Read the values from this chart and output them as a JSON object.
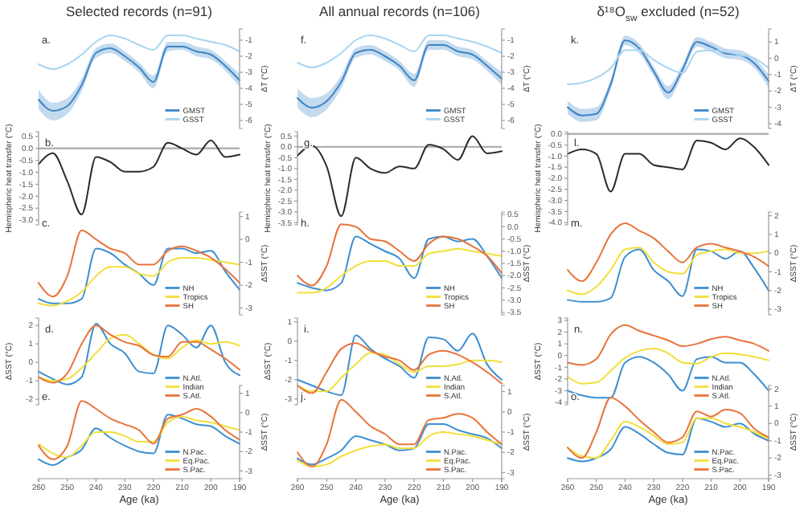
{
  "chart_data": [
    {
      "type": "line",
      "title": "Selected records (n=91)",
      "ylabel": "ΔT (°C)",
      "annotations": [
        "a."
      ],
      "tick_labels": "y",
      "legend": "bottom right",
      "x": [
        260,
        255,
        250,
        245,
        240,
        235,
        230,
        225,
        220,
        215,
        210,
        205,
        200,
        195,
        190
      ],
      "xlim": [
        260,
        190
      ],
      "ylim": [
        -6.5,
        -0.3
      ],
      "yticks": [
        -1,
        -2,
        -3,
        -4,
        -5,
        -6
      ],
      "series": [
        {
          "name": "GMST",
          "color": "#3d85c6",
          "values": [
            -4.7,
            -5.4,
            -5.1,
            -3.8,
            -1.8,
            -1.5,
            -2.0,
            -2.7,
            -3.6,
            -1.4,
            -1.4,
            -1.7,
            -1.9,
            -2.6,
            -3.5
          ],
          "lower": [
            -5.3,
            -6.0,
            -5.6,
            -4.2,
            -2.1,
            -1.8,
            -2.3,
            -3.0,
            -4.0,
            -1.7,
            -1.6,
            -2.0,
            -2.2,
            -2.9,
            -3.9
          ],
          "upper": [
            -4.1,
            -4.9,
            -4.6,
            -3.4,
            -1.5,
            -1.2,
            -1.7,
            -2.4,
            -3.2,
            -1.1,
            -1.1,
            -1.4,
            -1.6,
            -2.3,
            -3.1
          ]
        },
        {
          "name": "GSST",
          "color": "#a8d5f0",
          "values": [
            -2.5,
            -2.8,
            -2.5,
            -1.9,
            -1.1,
            -0.7,
            -0.9,
            -1.3,
            -1.6,
            -0.7,
            -0.7,
            -0.9,
            -1.1,
            -1.3,
            -1.7
          ]
        }
      ]
    },
    {
      "type": "line",
      "ylabel": "Hemispheric heat transfer (°C)",
      "annotations": [
        "b."
      ],
      "tick_labels": "y",
      "x": [
        260,
        255,
        250,
        245,
        240,
        235,
        230,
        225,
        220,
        215,
        210,
        205,
        200,
        195,
        190
      ],
      "xlim": [
        260,
        190
      ],
      "ylim": [
        -3.2,
        0.7
      ],
      "yticks": [
        0.5,
        {
          "value": 0,
          "label": "0.0"
        },
        -0.5,
        {
          "value": -1,
          "label": "-1.0"
        },
        -1.5,
        {
          "value": -2,
          "label": "-2.0"
        },
        -2.5,
        {
          "value": -3,
          "label": "-3.0"
        }
      ],
      "ref_lines": [
        {
          "axis": "y",
          "value": 0,
          "color": "#b0b0b0"
        }
      ],
      "series": [
        {
          "color": "#2b2b2b",
          "values": [
            -0.66,
            -0.2,
            -1.37,
            -2.77,
            -0.36,
            -0.57,
            -0.97,
            -0.97,
            -0.77,
            0.24,
            0.0,
            -0.26,
            0.34,
            -0.36,
            -0.26
          ]
        }
      ]
    },
    {
      "type": "line",
      "ylabel": "ΔSST (°C)",
      "annotations": [
        "c."
      ],
      "tick_labels": "y",
      "legend": "bottom right",
      "x": [
        260,
        255,
        250,
        245,
        240,
        235,
        230,
        225,
        220,
        215,
        210,
        205,
        200,
        195,
        190
      ],
      "xlim": [
        260,
        190
      ],
      "ylim": [
        -3.3,
        1.2
      ],
      "yticks": [
        1,
        0,
        -1,
        -2,
        -3
      ],
      "series": [
        {
          "name": "NH",
          "color": "#3d8fd1",
          "values": [
            -2.6,
            -2.8,
            -2.8,
            -2.6,
            -0.4,
            -0.6,
            -1.1,
            -1.5,
            -2.0,
            -0.4,
            -0.4,
            -0.6,
            -0.5,
            -1.4,
            -2.2
          ]
        },
        {
          "name": "Tropics",
          "color": "#f2df3a",
          "values": [
            -2.8,
            -2.9,
            -2.7,
            -2.3,
            -1.6,
            -1.2,
            -1.2,
            -1.5,
            -1.6,
            -1.0,
            -0.8,
            -0.8,
            -0.9,
            -1.0,
            -1.1
          ]
        },
        {
          "name": "SH",
          "color": "#e8733a",
          "values": [
            -1.9,
            -2.5,
            -1.6,
            0.4,
            0.0,
            -0.4,
            -0.6,
            -1.1,
            -1.1,
            -0.5,
            -0.3,
            -0.5,
            -0.8,
            -1.3,
            -1.9
          ]
        }
      ]
    },
    {
      "type": "line",
      "ylabel": "ΔSST (°C)",
      "annotations": [
        "d."
      ],
      "tick_labels": "y",
      "legend": "bottom right",
      "x": [
        260,
        255,
        250,
        245,
        240,
        235,
        230,
        225,
        220,
        215,
        210,
        205,
        200,
        195,
        190
      ],
      "xlim": [
        260,
        190
      ],
      "ylim": [
        -2.3,
        2.4
      ],
      "yticks": [
        2,
        1,
        0,
        -1,
        -2
      ],
      "series": [
        {
          "name": "N.Atl.",
          "color": "#3d8fd1",
          "values": [
            -0.5,
            -0.9,
            -1.2,
            -0.8,
            2.1,
            1.0,
            0.5,
            -0.5,
            -0.6,
            2.0,
            1.5,
            0.8,
            2.0,
            0.0,
            -0.7
          ]
        },
        {
          "name": "Indian",
          "color": "#f2df3a",
          "values": [
            -0.8,
            -1.0,
            -0.9,
            -0.3,
            0.5,
            1.3,
            1.5,
            1.0,
            0.4,
            0.2,
            0.8,
            1.2,
            1.0,
            1.1,
            0.9
          ]
        },
        {
          "name": "S.Atl.",
          "color": "#e8733a",
          "values": [
            -0.8,
            -1.1,
            -0.6,
            1.0,
            2.0,
            1.5,
            1.1,
            0.9,
            0.4,
            0.3,
            1.1,
            1.1,
            0.7,
            0.2,
            -0.4
          ]
        }
      ]
    },
    {
      "type": "line",
      "xlabel": "Age (ka)",
      "ylabel": "ΔSST (°C)",
      "annotations": [
        "e."
      ],
      "legend": "bottom right",
      "x": [
        260,
        255,
        250,
        245,
        240,
        235,
        230,
        225,
        220,
        215,
        210,
        205,
        200,
        195,
        190
      ],
      "xlim": [
        260,
        190
      ],
      "xticks": [
        260,
        250,
        240,
        230,
        220,
        210,
        200,
        190
      ],
      "ylim": [
        -3.4,
        1.4
      ],
      "yticks": [
        1,
        0,
        -1,
        -2,
        -3
      ],
      "series": [
        {
          "name": "N.Pac.",
          "color": "#3d8fd1",
          "values": [
            -2.4,
            -2.7,
            -2.3,
            -1.9,
            -0.8,
            -1.3,
            -1.7,
            -2.0,
            -2.1,
            -0.1,
            -0.3,
            -0.6,
            -0.7,
            -1.2,
            -1.6
          ]
        },
        {
          "name": "Eq.Pac.",
          "color": "#f2df3a",
          "values": [
            -1.6,
            -2.1,
            -2.3,
            -1.7,
            -1.0,
            -1.0,
            -1.2,
            -1.5,
            -1.5,
            -0.5,
            -0.2,
            -0.4,
            -0.5,
            -0.7,
            -0.9
          ]
        },
        {
          "name": "S.Pac.",
          "color": "#e8733a",
          "values": [
            -1.7,
            -2.4,
            -1.7,
            0.6,
            0.2,
            -0.3,
            -0.6,
            -0.9,
            -1.6,
            -0.3,
            -0.1,
            0.2,
            -0.2,
            -0.9,
            -1.4
          ]
        }
      ]
    },
    {
      "type": "line",
      "title": "All annual records (n=106)",
      "ylabel": "ΔT (°C)",
      "annotations": [
        "f."
      ],
      "tick_labels": "y",
      "legend": "bottom right",
      "x": [
        260,
        255,
        250,
        245,
        240,
        235,
        230,
        225,
        220,
        215,
        210,
        205,
        200,
        195,
        190
      ],
      "xlim": [
        260,
        190
      ],
      "ylim": [
        -6.5,
        -0.3
      ],
      "yticks": [
        -1,
        -2,
        -3,
        -4,
        -5,
        -6
      ],
      "series": [
        {
          "name": "GMST",
          "color": "#3d85c6",
          "values": [
            -4.6,
            -5.2,
            -4.8,
            -3.6,
            -1.8,
            -1.6,
            -2.0,
            -2.6,
            -3.5,
            -1.3,
            -1.3,
            -1.7,
            -1.9,
            -2.6,
            -3.4
          ],
          "lower": [
            -5.2,
            -5.8,
            -5.3,
            -4.0,
            -2.1,
            -1.9,
            -2.3,
            -2.9,
            -3.9,
            -1.6,
            -1.6,
            -2.0,
            -2.2,
            -2.9,
            -3.8
          ],
          "upper": [
            -4.0,
            -4.6,
            -4.3,
            -3.2,
            -1.5,
            -1.3,
            -1.7,
            -2.3,
            -3.1,
            -1.0,
            -1.0,
            -1.4,
            -1.6,
            -2.3,
            -3.0
          ]
        },
        {
          "name": "GSST",
          "color": "#a8d5f0",
          "values": [
            -2.4,
            -2.7,
            -2.4,
            -1.8,
            -1.0,
            -0.7,
            -0.9,
            -1.3,
            -1.7,
            -0.7,
            -0.7,
            -0.9,
            -1.1,
            -1.4,
            -1.8
          ]
        }
      ]
    },
    {
      "type": "line",
      "ylabel": "Hemispheric heat transfer (°C)",
      "annotations": [
        "g."
      ],
      "tick_labels": "y",
      "x": [
        260,
        255,
        250,
        245,
        240,
        235,
        230,
        225,
        220,
        215,
        210,
        205,
        200,
        195,
        190
      ],
      "xlim": [
        260,
        190
      ],
      "ylim": [
        -3.6,
        0.7
      ],
      "yticks": [
        0.5,
        {
          "value": 0,
          "label": "0.0"
        },
        -0.5,
        {
          "value": -1,
          "label": "-1.0"
        },
        -1.5,
        {
          "value": -2,
          "label": "-2.0"
        },
        -2.5,
        {
          "value": -3,
          "label": "-3.0"
        },
        -3.5
      ],
      "ref_lines": [
        {
          "axis": "y",
          "value": 0,
          "color": "#b0b0b0"
        }
      ],
      "series": [
        {
          "color": "#2b2b2b",
          "values": [
            -0.4,
            0.05,
            -0.9,
            -3.2,
            -0.5,
            -1.0,
            -1.2,
            -0.9,
            -1.0,
            0.1,
            -0.1,
            -0.6,
            0.5,
            -0.3,
            -0.2
          ]
        }
      ]
    },
    {
      "type": "line",
      "ylabel": "ΔSST (°C)",
      "annotations": [
        "h."
      ],
      "tick_labels": "y",
      "legend": "bottom right",
      "x": [
        260,
        255,
        250,
        245,
        240,
        235,
        230,
        225,
        220,
        215,
        210,
        205,
        200,
        195,
        190
      ],
      "xlim": [
        260,
        190
      ],
      "ylim": [
        -3.6,
        0.6
      ],
      "yticks": [
        0.5,
        {
          "value": 0,
          "label": "0.0"
        },
        -0.5,
        {
          "value": -1,
          "label": "-1.0"
        },
        -1.5,
        {
          "value": -2,
          "label": "-2.0"
        },
        -2.5,
        {
          "value": -3,
          "label": "-3.0"
        },
        -3.5
      ],
      "series": [
        {
          "name": "NH",
          "color": "#3d8fd1",
          "values": [
            -2.3,
            -2.5,
            -2.6,
            -2.3,
            -0.4,
            -0.7,
            -1.0,
            -1.3,
            -2.1,
            -0.5,
            -0.4,
            -0.6,
            -0.5,
            -1.2,
            -2.1
          ]
        },
        {
          "name": "Tropics",
          "color": "#f2df3a",
          "values": [
            -2.7,
            -2.7,
            -2.5,
            -2.0,
            -1.6,
            -1.4,
            -1.4,
            -1.6,
            -1.6,
            -1.1,
            -1.0,
            -0.9,
            -1.0,
            -1.1,
            -1.2
          ]
        },
        {
          "name": "SH",
          "color": "#e8733a",
          "values": [
            -2.0,
            -2.4,
            -1.6,
            0.1,
            0.0,
            -0.5,
            -0.6,
            -1.0,
            -1.4,
            -0.7,
            -0.4,
            -0.5,
            -0.8,
            -1.2,
            -1.9
          ]
        }
      ]
    },
    {
      "type": "line",
      "ylabel": "ΔSST (°C)",
      "annotations": [
        "i."
      ],
      "tick_labels": "y",
      "legend": "bottom right",
      "x": [
        260,
        255,
        250,
        245,
        240,
        235,
        230,
        225,
        220,
        215,
        210,
        205,
        200,
        195,
        190
      ],
      "xlim": [
        260,
        190
      ],
      "ylim": [
        -3.3,
        1.2
      ],
      "yticks": [
        1,
        0,
        -1,
        -2,
        -3
      ],
      "series": [
        {
          "name": "N.Atl.",
          "color": "#3d8fd1",
          "values": [
            -2.0,
            -2.3,
            -2.6,
            -2.8,
            0.3,
            -0.4,
            -0.9,
            -1.3,
            -1.9,
            0.2,
            0.1,
            -0.5,
            0.4,
            -1.2,
            -2.0
          ]
        },
        {
          "name": "Indian",
          "color": "#f2df3a",
          "values": [
            -2.3,
            -2.6,
            -2.6,
            -1.9,
            -1.2,
            -0.6,
            -0.7,
            -1.2,
            -1.6,
            -1.3,
            -1.3,
            -1.2,
            -1.0,
            -1.0,
            -1.1
          ]
        },
        {
          "name": "S.Atl.",
          "color": "#e8733a",
          "values": [
            -2.3,
            -2.7,
            -1.6,
            -0.4,
            -0.1,
            -0.5,
            -0.8,
            -1.0,
            -1.5,
            -0.7,
            -0.5,
            -0.7,
            -1.1,
            -1.6,
            -2.2
          ]
        }
      ]
    },
    {
      "type": "line",
      "xlabel": "Age (ka)",
      "ylabel": "ΔSST (°C)",
      "annotations": [
        "j."
      ],
      "legend": "bottom right",
      "x": [
        260,
        255,
        250,
        245,
        240,
        235,
        230,
        225,
        220,
        215,
        210,
        205,
        200,
        195,
        190
      ],
      "xlim": [
        260,
        190
      ],
      "xticks": [
        260,
        250,
        240,
        230,
        220,
        210,
        200,
        190
      ],
      "ylim": [
        -3.3,
        1.3
      ],
      "yticks": [
        1,
        0,
        -1,
        -2,
        -3
      ],
      "series": [
        {
          "name": "N.Pac.",
          "color": "#3d8fd1",
          "values": [
            -2.3,
            -2.6,
            -2.3,
            -1.9,
            -1.2,
            -1.4,
            -1.6,
            -1.9,
            -1.8,
            -0.6,
            -0.6,
            -0.9,
            -1.1,
            -1.3,
            -1.8
          ]
        },
        {
          "name": "Eq.Pac.",
          "color": "#f2df3a",
          "values": [
            -2.4,
            -2.7,
            -2.6,
            -2.2,
            -1.9,
            -1.7,
            -1.6,
            -1.8,
            -1.8,
            -1.2,
            -1.0,
            -1.1,
            -1.2,
            -1.4,
            -1.6
          ]
        },
        {
          "name": "S.Pac.",
          "color": "#e8733a",
          "values": [
            -2.0,
            -2.7,
            -1.6,
            0.6,
            0.0,
            -0.7,
            -1.1,
            -1.6,
            -1.6,
            -0.4,
            -0.3,
            -0.1,
            -0.3,
            -1.0,
            -1.6
          ]
        }
      ]
    },
    {
      "type": "line",
      "title": "δ¹⁸O$_{sw}$ excluded (n=52)",
      "ylabel": "ΔT (°C)",
      "annotations": [
        "k."
      ],
      "tick_labels": "y",
      "legend": "bottom right",
      "x": [
        260,
        255,
        250,
        245,
        240,
        235,
        230,
        225,
        220,
        215,
        210,
        205,
        200,
        195,
        190
      ],
      "xlim": [
        260,
        190
      ],
      "ylim": [
        -4.3,
        1.8
      ],
      "yticks": [
        1,
        0,
        -1,
        -2,
        -3,
        -4
      ],
      "series": [
        {
          "name": "GMST",
          "color": "#3d85c6",
          "values": [
            -3.0,
            -3.5,
            -3.4,
            -1.6,
            1.1,
            0.6,
            -0.8,
            -2.1,
            -0.7,
            1.0,
            0.7,
            0.3,
            0.2,
            -0.3,
            -1.4
          ],
          "lower": [
            -3.4,
            -3.9,
            -3.8,
            -1.9,
            0.8,
            0.3,
            -1.1,
            -2.5,
            -1.0,
            0.7,
            0.4,
            0.0,
            -0.1,
            -0.6,
            -1.8
          ],
          "upper": [
            -2.6,
            -3.1,
            -3.0,
            -1.3,
            1.4,
            0.9,
            -0.5,
            -1.7,
            -0.4,
            1.3,
            1.0,
            0.6,
            0.5,
            0.0,
            -1.0
          ]
        },
        {
          "name": "GSST",
          "color": "#a8d5f0",
          "values": [
            -1.6,
            -1.5,
            -1.2,
            -0.6,
            0.5,
            0.5,
            -0.1,
            -0.6,
            -0.9,
            0.4,
            0.5,
            0.4,
            0.2,
            0.0,
            -0.6
          ]
        }
      ]
    },
    {
      "type": "line",
      "ylabel": "Hemispheric heat transfer (°C)",
      "annotations": [
        "l."
      ],
      "tick_labels": "y",
      "x": [
        260,
        255,
        250,
        245,
        240,
        235,
        230,
        225,
        220,
        215,
        210,
        205,
        200,
        195,
        190
      ],
      "xlim": [
        260,
        190
      ],
      "ylim": [
        -4.1,
        0.1
      ],
      "yticks": [
        {
          "value": 0,
          "label": "0.0"
        },
        -0.5,
        {
          "value": -1,
          "label": "-1.0"
        },
        -1.5,
        {
          "value": -2,
          "label": "-2.0"
        },
        -2.5,
        {
          "value": -3,
          "label": "-3.0"
        },
        -3.5,
        {
          "value": -4,
          "label": "-4.0"
        }
      ],
      "ref_lines": [
        {
          "axis": "y",
          "value": 0,
          "color": "#b0b0b0"
        }
      ],
      "series": [
        {
          "color": "#2b2b2b",
          "values": [
            -0.9,
            -0.7,
            -0.9,
            -2.6,
            -0.9,
            -0.9,
            -1.4,
            -1.5,
            -1.6,
            -0.3,
            -0.4,
            -0.7,
            -0.2,
            -0.6,
            -1.4
          ]
        }
      ]
    },
    {
      "type": "line",
      "ylabel": "ΔSST (°C)",
      "annotations": [
        "m."
      ],
      "tick_labels": "y",
      "legend": "bottom right",
      "x": [
        260,
        255,
        250,
        245,
        240,
        235,
        230,
        225,
        220,
        215,
        210,
        205,
        200,
        195,
        190
      ],
      "xlim": [
        260,
        190
      ],
      "ylim": [
        -3.3,
        2.2
      ],
      "yticks": [
        2,
        1,
        0,
        -1,
        -2,
        -3
      ],
      "series": [
        {
          "name": "NH",
          "color": "#3d8fd1",
          "values": [
            -2.5,
            -2.6,
            -2.6,
            -2.4,
            -0.2,
            0.2,
            -0.9,
            -1.5,
            -2.3,
            0.2,
            0.1,
            -0.3,
            0.1,
            -0.8,
            -2.0
          ]
        },
        {
          "name": "Tropics",
          "color": "#f2df3a",
          "values": [
            -2.0,
            -2.2,
            -1.8,
            -0.9,
            0.2,
            0.3,
            -0.5,
            -1.0,
            -1.1,
            -0.1,
            0.1,
            0.2,
            0.0,
            0.0,
            0.1
          ]
        },
        {
          "name": "SH",
          "color": "#e8733a",
          "values": [
            -0.9,
            -1.5,
            -0.5,
            1.0,
            1.6,
            1.2,
            0.8,
            0.1,
            -0.5,
            0.3,
            0.5,
            0.3,
            0.1,
            -0.2,
            -0.7
          ]
        }
      ]
    },
    {
      "type": "line",
      "ylabel": "ΔSST (°C)",
      "annotations": [
        "n."
      ],
      "tick_labels": "y",
      "legend": "bottom right",
      "x": [
        260,
        255,
        250,
        245,
        240,
        235,
        230,
        225,
        220,
        215,
        210,
        205,
        200,
        195,
        190
      ],
      "xlim": [
        260,
        190
      ],
      "ylim": [
        -4.2,
        3.2
      ],
      "yticks": [
        3,
        2,
        1,
        0,
        -1,
        -2,
        -3,
        -4
      ],
      "series": [
        {
          "name": "N.Atl.",
          "color": "#3d8fd1",
          "values": [
            -3.0,
            -3.4,
            -3.6,
            -3.6,
            -0.6,
            -0.1,
            -0.6,
            -1.6,
            -3.0,
            -0.3,
            -0.1,
            -0.6,
            -0.6,
            -1.6,
            -3.0
          ]
        },
        {
          "name": "Indian",
          "color": "#f2df3a",
          "values": [
            -1.8,
            -2.4,
            -2.3,
            -1.3,
            -0.2,
            0.4,
            0.6,
            0.2,
            -0.6,
            -0.7,
            -0.1,
            0.2,
            0.1,
            -0.1,
            -0.4
          ]
        },
        {
          "name": "S.Atl.",
          "color": "#e8733a",
          "values": [
            -0.6,
            -0.8,
            -0.3,
            1.8,
            2.6,
            2.1,
            1.7,
            1.3,
            0.8,
            1.0,
            1.4,
            1.6,
            1.3,
            1.0,
            0.4
          ]
        }
      ]
    },
    {
      "type": "line",
      "xlabel": "Age (ka)",
      "ylabel": "ΔSST (°C)",
      "annotations": [
        "o."
      ],
      "legend": "bottom right",
      "x": [
        260,
        255,
        250,
        245,
        240,
        235,
        230,
        225,
        220,
        215,
        210,
        205,
        200,
        195,
        190
      ],
      "xlim": [
        260,
        190
      ],
      "xticks": [
        260,
        250,
        240,
        230,
        220,
        210,
        200,
        190
      ],
      "ylim": [
        -3.2,
        2.2
      ],
      "yticks": [
        2,
        1,
        0,
        -1,
        -2,
        -3
      ],
      "series": [
        {
          "name": "N.Pac.",
          "color": "#3d8fd1",
          "values": [
            -2.0,
            -2.2,
            -2.0,
            -1.5,
            -0.2,
            -0.6,
            -1.2,
            -1.7,
            -1.8,
            0.3,
            0.1,
            -0.2,
            0.0,
            -0.6,
            -1.0
          ]
        },
        {
          "name": "Eq.Pac.",
          "color": "#f2df3a",
          "values": [
            -1.4,
            -1.9,
            -2.0,
            -1.0,
            0.1,
            -0.2,
            -0.7,
            -1.2,
            -1.1,
            0.3,
            0.3,
            0.0,
            -0.2,
            -0.5,
            -0.9
          ]
        },
        {
          "name": "S.Pac.",
          "color": "#e8733a",
          "values": [
            -1.4,
            -2.0,
            -0.5,
            1.5,
            1.0,
            0.2,
            -0.5,
            -1.1,
            -0.8,
            0.7,
            0.4,
            0.8,
            0.6,
            -0.3,
            -0.8
          ]
        }
      ]
    }
  ]
}
